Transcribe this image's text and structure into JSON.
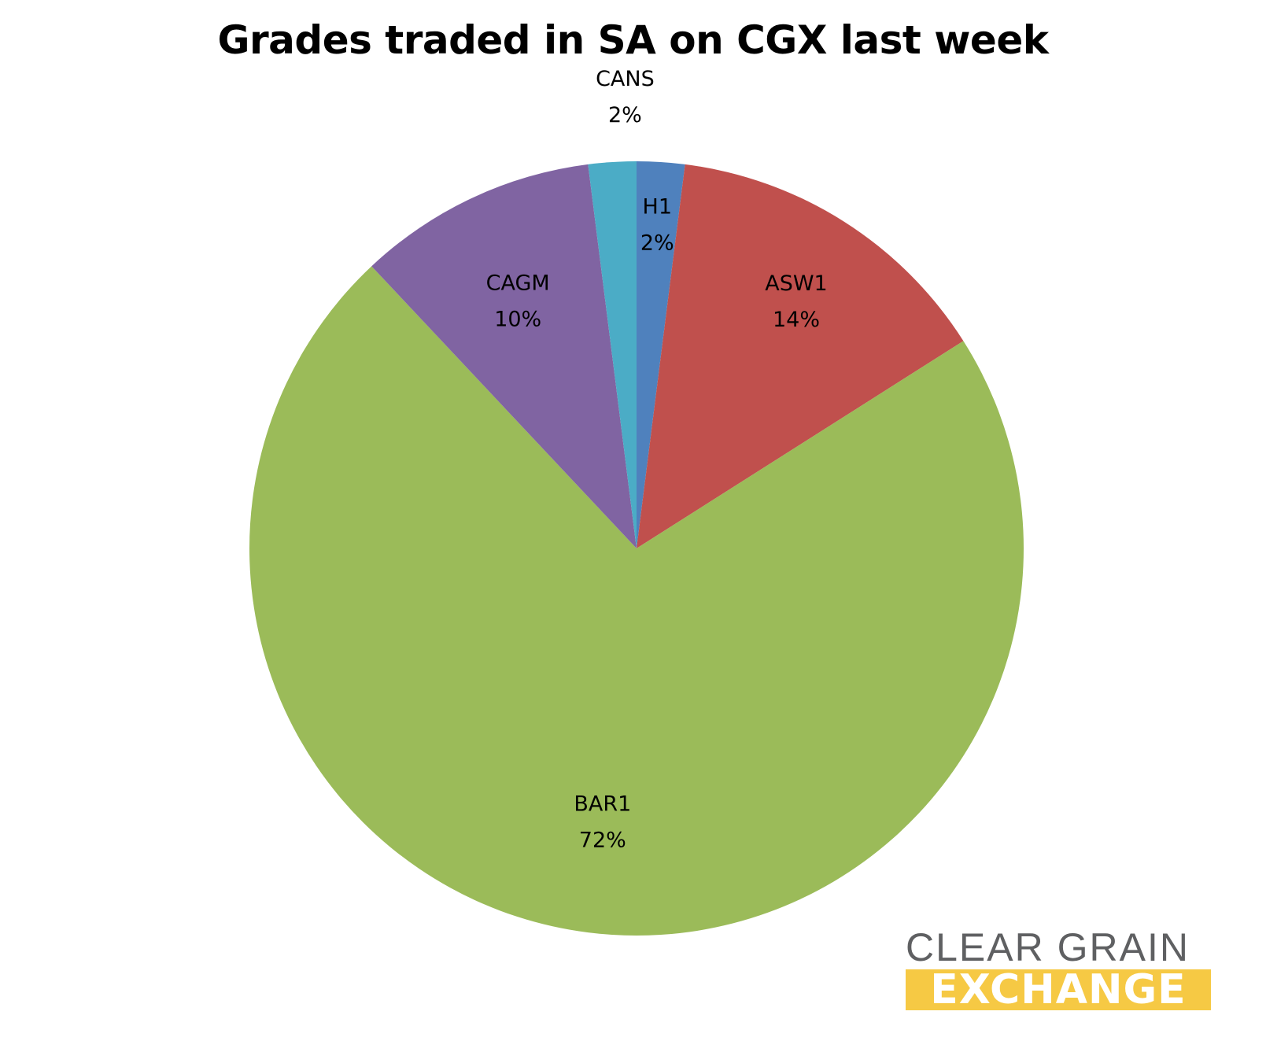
{
  "chart_data": {
    "type": "pie",
    "title": "Grades traded in SA on CGX last week",
    "slices": [
      {
        "label": "H1",
        "percent_label": "2%",
        "value": 2,
        "color": "#4f81bd"
      },
      {
        "label": "ASW1",
        "percent_label": "14%",
        "value": 14,
        "color": "#c0504d"
      },
      {
        "label": "BAR1",
        "percent_label": "72%",
        "value": 72,
        "color": "#9bbb59"
      },
      {
        "label": "CAGM",
        "percent_label": "10%",
        "value": 10,
        "color": "#8064a2"
      },
      {
        "label": "CANS",
        "percent_label": "2%",
        "value": 2,
        "color": "#4bacc6"
      }
    ],
    "start_angle": "12 o'clock",
    "direction": "clockwise",
    "legend": "none"
  },
  "logo": {
    "line1": "CLEAR GRAIN",
    "line2": "EXCHANGE"
  }
}
